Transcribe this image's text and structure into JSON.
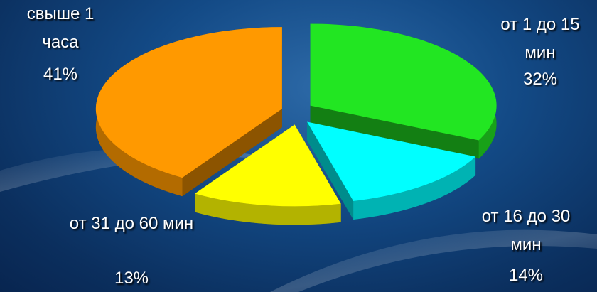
{
  "chart_data": {
    "type": "pie",
    "categories": [
      "от 1 до 15 мин",
      "от 16 до 30 мин",
      "от 31 до 60 мин",
      "свыше 1 часа"
    ],
    "values": [
      32,
      14,
      13,
      41
    ],
    "value_labels": [
      "32%",
      "14%",
      "13%",
      "41%"
    ],
    "colors": [
      "#22e622",
      "#00ffff",
      "#ffff00",
      "#ff9900"
    ]
  }
}
